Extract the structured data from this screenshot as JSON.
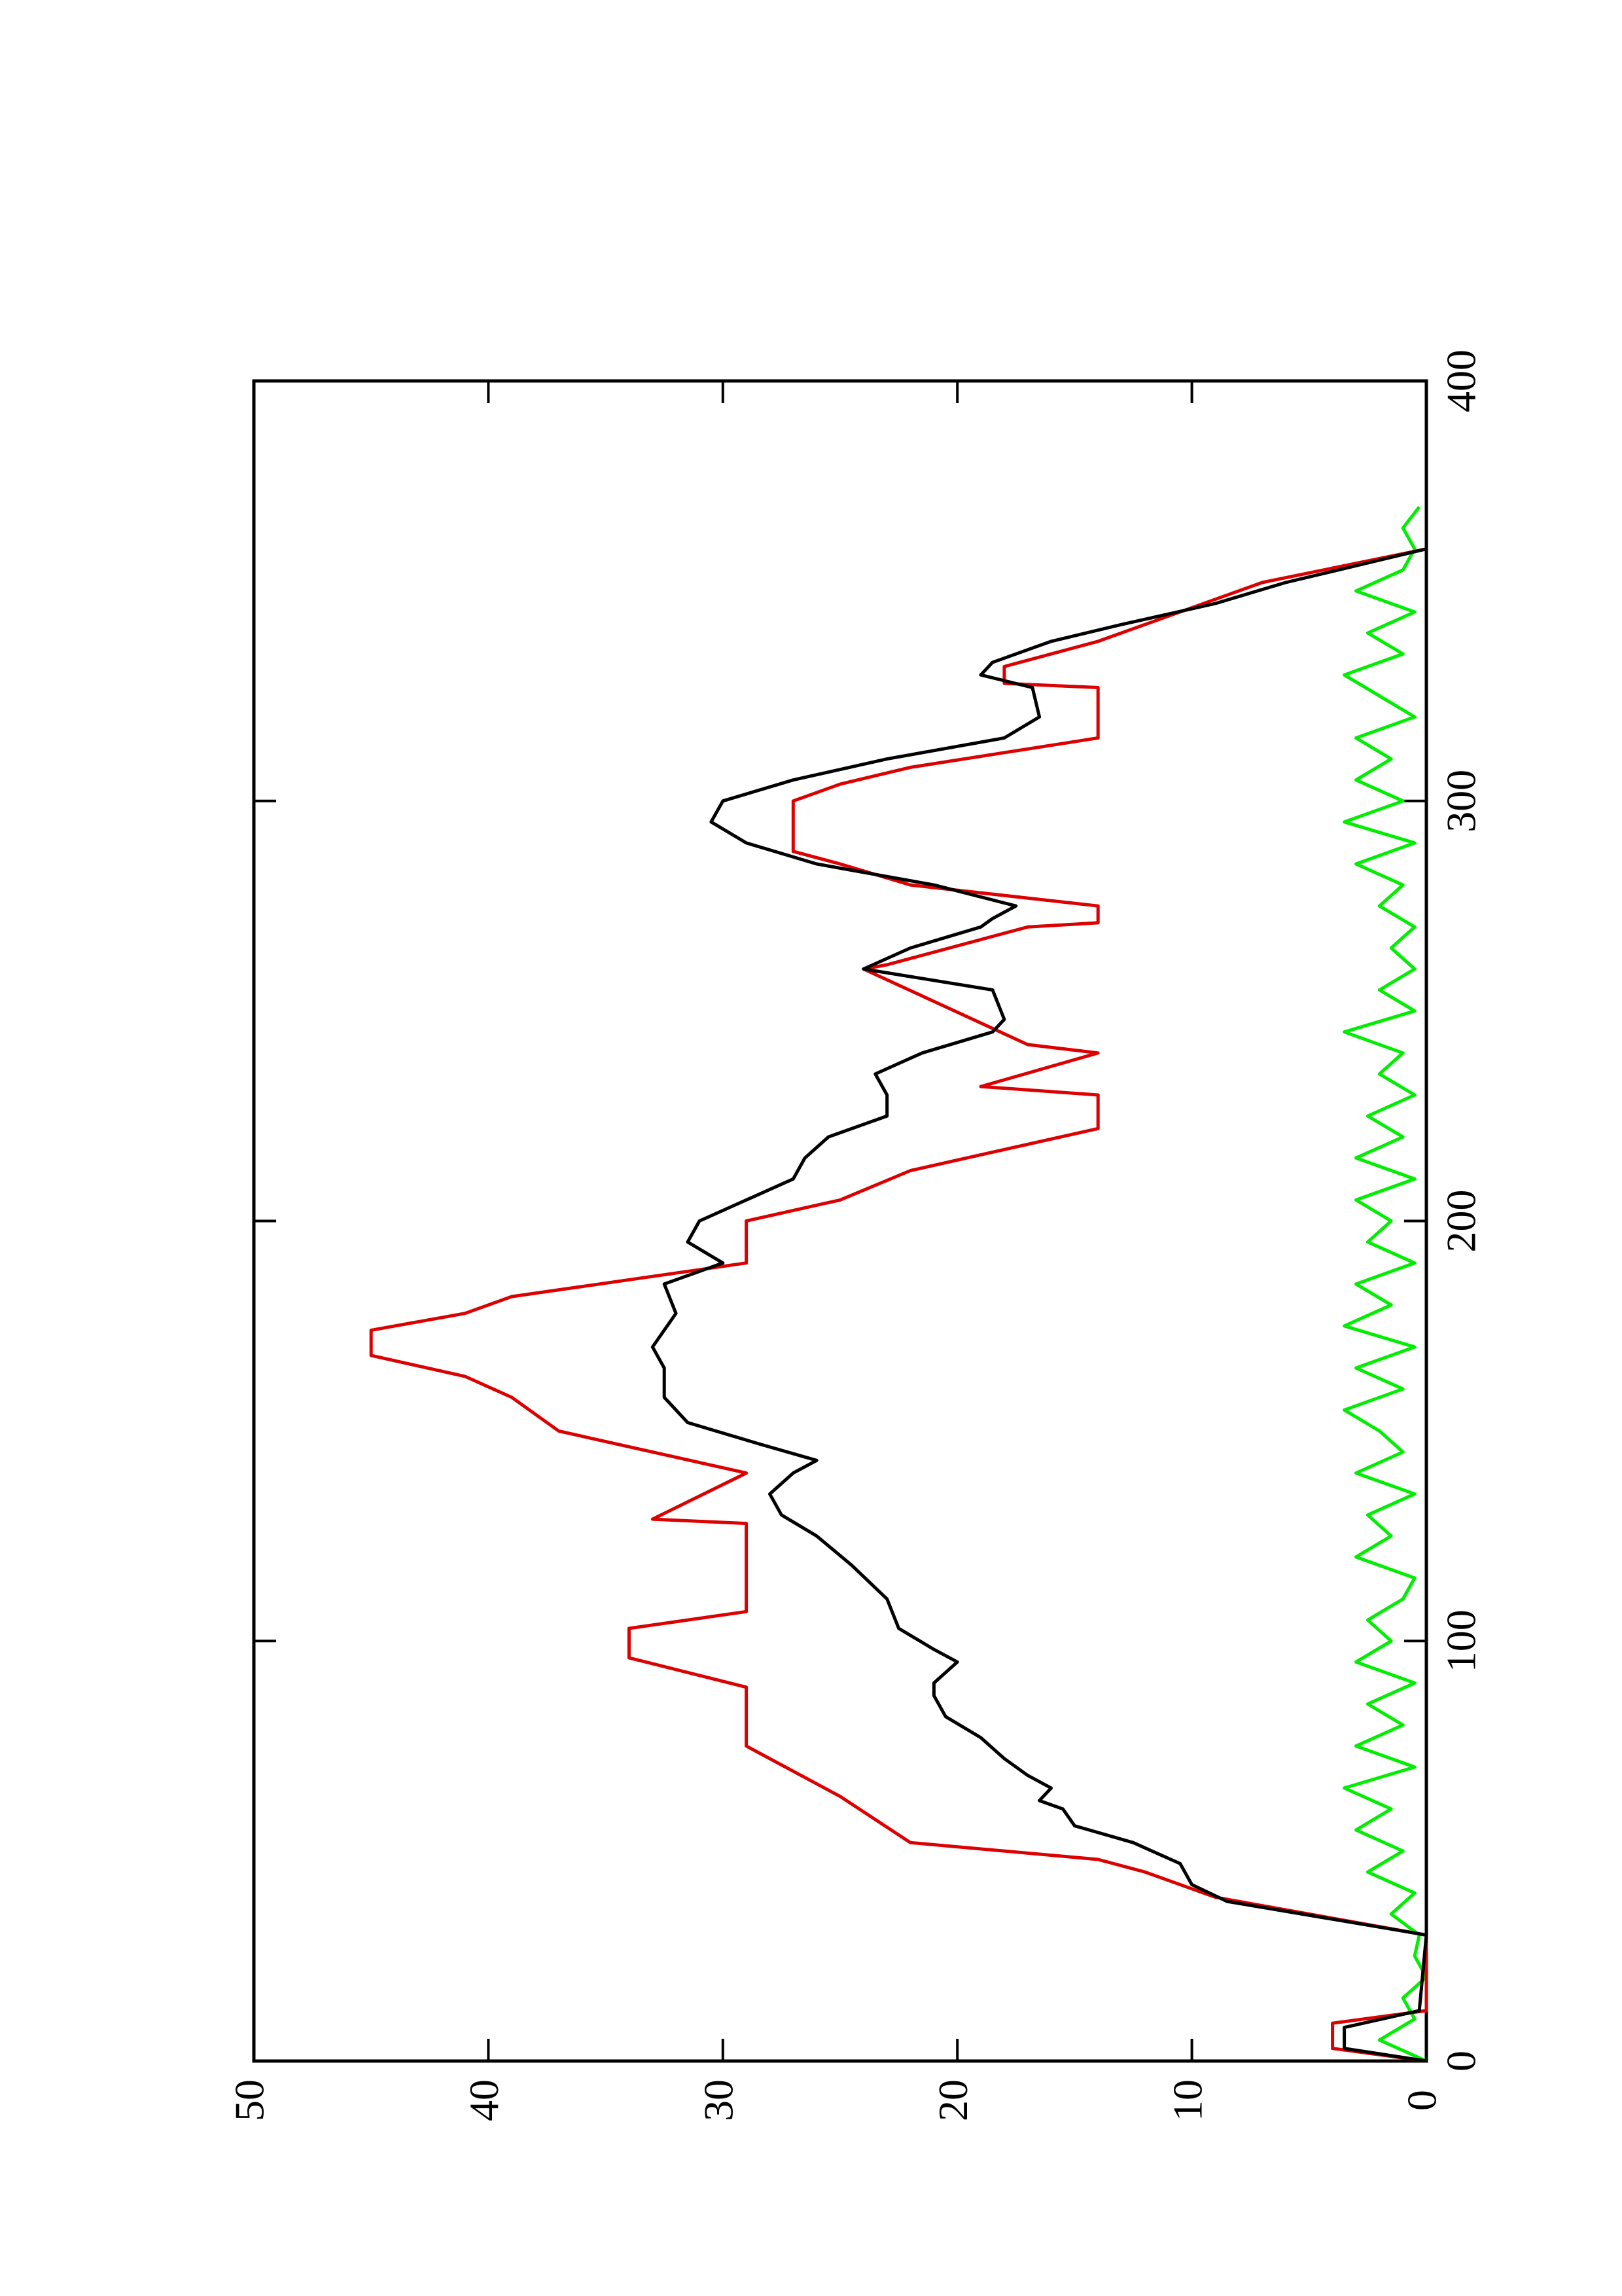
{
  "chart_data": {
    "type": "line",
    "xlim": [
      0,
      400
    ],
    "xticks": [
      0,
      100,
      200,
      300,
      400
    ],
    "ylim": [
      0,
      50
    ],
    "yticks": [
      0,
      10,
      20,
      30,
      40,
      50
    ],
    "series": [
      {
        "color": "#00ee00",
        "x": [
          0,
          5,
          10,
          15,
          20,
          25,
          30,
          35,
          40,
          45,
          50,
          55,
          60,
          65,
          70,
          75,
          80,
          85,
          90,
          95,
          100,
          105,
          110,
          115,
          120,
          125,
          130,
          135,
          140,
          145,
          150,
          155,
          160,
          165,
          170,
          175,
          180,
          185,
          190,
          195,
          200,
          205,
          210,
          215,
          220,
          225,
          230,
          235,
          240,
          245,
          250,
          255,
          260,
          265,
          270,
          275,
          280,
          285,
          290,
          295,
          300,
          305,
          310,
          315,
          320,
          325,
          330,
          335,
          340,
          345,
          350,
          355,
          360,
          365,
          370
        ],
        "values": [
          0,
          2,
          0.5,
          1,
          0,
          0.5,
          0.3,
          1.5,
          0.5,
          2.5,
          1,
          3,
          1.5,
          3.5,
          0.5,
          3,
          1,
          2.5,
          0.5,
          3,
          1.5,
          2.5,
          1,
          0.5,
          3,
          1.5,
          2.5,
          0.5,
          3,
          1,
          2,
          3.5,
          1,
          3,
          0.5,
          3.5,
          1.5,
          3,
          0.5,
          2.5,
          1.5,
          3,
          0.5,
          3,
          1,
          2.5,
          0.5,
          2,
          1,
          3.5,
          0.5,
          2,
          0.5,
          1.5,
          0.5,
          2,
          1,
          3,
          0.5,
          3.5,
          1,
          3,
          1.5,
          3,
          0.5,
          2,
          3.5,
          1,
          2.5,
          0.5,
          3,
          1,
          0.5,
          1,
          0.3
        ]
      },
      {
        "color": "#dd0000",
        "x": [
          0,
          3,
          9,
          12,
          30,
          39,
          45,
          48,
          52,
          63,
          75,
          89,
          96,
          103,
          107,
          128,
          129,
          140,
          150,
          158,
          163,
          168,
          174,
          178,
          182,
          190,
          200,
          205,
          212,
          222,
          230,
          232,
          240,
          242,
          260,
          261,
          270,
          271,
          275,
          280,
          285,
          288,
          300,
          304,
          308,
          315,
          327,
          328,
          332,
          338,
          342,
          352,
          360
        ],
        "values": [
          0,
          4,
          4,
          0,
          0,
          9,
          12,
          14,
          22,
          25,
          29,
          29,
          34,
          34,
          29,
          29,
          33,
          29,
          37,
          39,
          41,
          45,
          45,
          41,
          39,
          29,
          29,
          25,
          22,
          14,
          14,
          19,
          14,
          17,
          24,
          23,
          17,
          14,
          14,
          22,
          25,
          27,
          27,
          25,
          22,
          14,
          14,
          18,
          18,
          14,
          12,
          7,
          0
        ]
      },
      {
        "color": "#000000",
        "x": [
          0,
          3,
          8,
          12,
          30,
          38,
          42,
          47,
          52,
          56,
          60,
          62,
          65,
          68,
          72,
          77,
          82,
          87,
          90,
          95,
          98,
          103,
          110,
          118,
          125,
          130,
          135,
          140,
          143,
          147,
          152,
          158,
          165,
          170,
          178,
          185,
          190,
          195,
          200,
          205,
          210,
          215,
          220,
          225,
          230,
          235,
          240,
          245,
          248,
          255,
          260,
          265,
          270,
          272,
          275,
          280,
          285,
          290,
          295,
          300,
          305,
          310,
          315,
          320,
          327,
          330,
          333,
          338,
          342,
          347,
          352,
          360
        ],
        "values": [
          0,
          3.5,
          3.5,
          0.3,
          0,
          8.5,
          10,
          10.5,
          12.5,
          15,
          15.5,
          16.5,
          16,
          17,
          18,
          19,
          20.5,
          21,
          21,
          20,
          21,
          22.5,
          23,
          24.5,
          26,
          27.5,
          28,
          27,
          26,
          28.5,
          31.5,
          32.5,
          32.5,
          33,
          32,
          32.5,
          30,
          31.5,
          31,
          29,
          27,
          26.5,
          25.5,
          23,
          23,
          23.5,
          21.5,
          18.5,
          18,
          18.5,
          24,
          22,
          19,
          18.5,
          17.5,
          21,
          26,
          29,
          30.5,
          30,
          27,
          23,
          18,
          16.5,
          16.8,
          19,
          18.5,
          16,
          13,
          9,
          6,
          0
        ]
      }
    ]
  }
}
